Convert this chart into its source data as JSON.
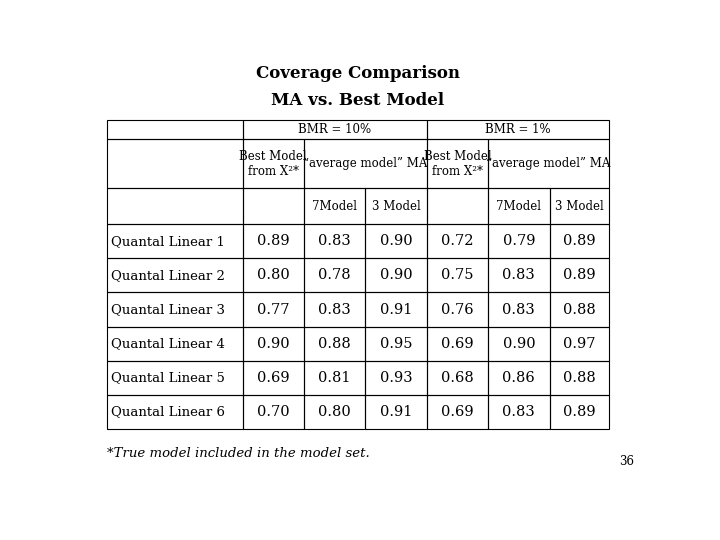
{
  "title_line1": "Coverage Comparison",
  "title_line2": "MA vs. Best Model",
  "row_labels": [
    "Quantal Linear 1",
    "Quantal Linear 2",
    "Quantal Linear 3",
    "Quantal Linear 4",
    "Quantal Linear 5",
    "Quantal Linear 6"
  ],
  "col_header_1": "BMR = 10%",
  "col_header_2": "BMR = 1%",
  "subheader_best": "Best Model\nfrom X²*",
  "subheader_avg": "“average model” MA",
  "subsubheader_7": "7Model",
  "subsubheader_3": "3 Model",
  "footnote": "*True model included in the model set.",
  "page_num": "36",
  "data": [
    [
      0.89,
      0.83,
      0.9,
      0.72,
      0.79,
      0.89
    ],
    [
      0.8,
      0.78,
      0.9,
      0.75,
      0.83,
      0.89
    ],
    [
      0.77,
      0.83,
      0.91,
      0.76,
      0.83,
      0.88
    ],
    [
      0.9,
      0.88,
      0.95,
      0.69,
      0.9,
      0.97
    ],
    [
      0.69,
      0.81,
      0.93,
      0.68,
      0.86,
      0.88
    ],
    [
      0.7,
      0.8,
      0.91,
      0.69,
      0.83,
      0.89
    ]
  ],
  "bg_color": "#ffffff",
  "text_color": "#000000",
  "title_fontsize": 12,
  "cell_fontsize": 10.5,
  "header_fontsize": 8.5,
  "row_label_fontsize": 9.5,
  "footnote_fontsize": 9.5,
  "page_fontsize": 8.5
}
